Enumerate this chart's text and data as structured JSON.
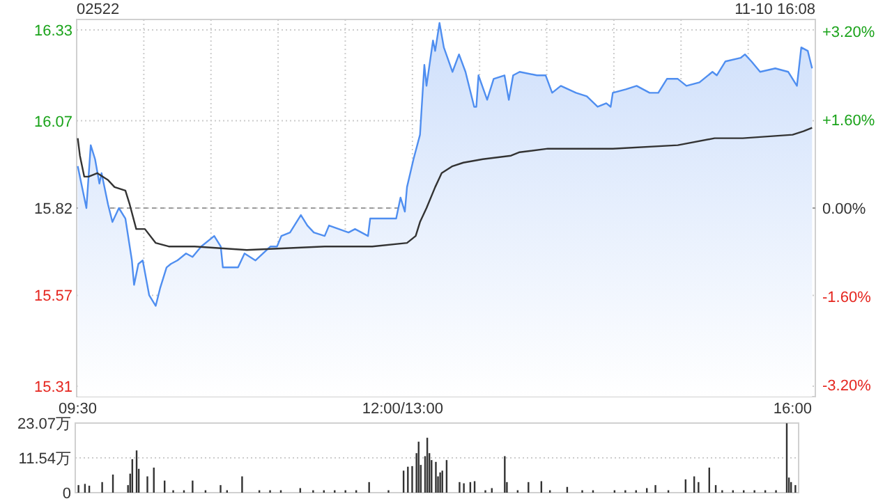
{
  "chart_data": [
    {
      "type": "line",
      "title": "02522",
      "annotations": [
        "11-10 16:08"
      ],
      "categories": [
        "09:30",
        null,
        null,
        null,
        null,
        null,
        null,
        null,
        null,
        null,
        null,
        null,
        null,
        null,
        null,
        null,
        null,
        null,
        null,
        null,
        null,
        null,
        null,
        null,
        null,
        null,
        null,
        null,
        null,
        null,
        null,
        null,
        null,
        null,
        null,
        null,
        null,
        null,
        null,
        null,
        null,
        null,
        null,
        null,
        null,
        null,
        null,
        null,
        null,
        null,
        null,
        null,
        null,
        null,
        null,
        null,
        null,
        null,
        null,
        null,
        null,
        null,
        null,
        null,
        null,
        null,
        null,
        null,
        null,
        null,
        null,
        null,
        null,
        null,
        null,
        null,
        null,
        null,
        null,
        null,
        null,
        null,
        null,
        null,
        null,
        null,
        null,
        null,
        null,
        null,
        null,
        null,
        null,
        null,
        null,
        null,
        null,
        null,
        null,
        null,
        null,
        null,
        null,
        null,
        null,
        null,
        null,
        null,
        null,
        null,
        null,
        null,
        null,
        null,
        null,
        null,
        null,
        null,
        null,
        null,
        null,
        null,
        null,
        null,
        null,
        null,
        null,
        null,
        null,
        null,
        null,
        null,
        null,
        null,
        null,
        null,
        null,
        null,
        null,
        null,
        null,
        null,
        null,
        null,
        null,
        null,
        null,
        null,
        null,
        null,
        "12:00/13:00",
        null,
        null,
        null,
        null,
        null,
        null,
        null,
        null,
        null,
        null,
        null,
        null,
        null,
        null,
        null,
        null,
        null,
        null,
        null,
        null,
        null,
        null,
        null,
        null,
        null,
        null,
        null,
        null,
        null,
        null,
        null,
        null,
        null,
        null,
        null,
        null,
        null,
        null,
        null,
        null,
        null,
        null,
        null,
        null,
        null,
        null,
        null,
        null,
        null,
        null,
        null,
        null,
        null,
        null,
        null,
        null,
        null,
        null,
        null,
        null,
        null,
        null,
        null,
        null,
        null,
        null,
        null,
        null,
        null,
        null,
        null,
        null,
        null,
        null,
        null,
        null,
        null,
        null,
        null,
        null,
        null,
        null,
        null,
        null,
        null,
        null,
        null,
        null,
        null,
        null,
        null,
        null,
        null,
        null,
        null,
        null,
        null,
        null,
        null,
        null,
        null,
        null,
        null,
        null,
        null,
        null,
        null,
        null,
        null,
        null,
        null,
        null,
        null,
        null,
        null,
        null,
        null,
        null,
        null,
        null,
        null,
        null,
        null,
        null,
        null,
        null,
        null,
        null,
        null,
        null,
        null,
        null,
        null,
        null,
        null,
        null,
        null,
        null,
        null,
        null,
        null,
        null,
        null,
        null,
        null,
        null,
        null,
        null,
        null,
        null,
        null,
        null,
        null,
        null,
        null,
        null,
        null,
        null,
        null,
        null,
        null,
        null,
        null,
        null,
        null,
        null,
        null,
        null,
        null,
        null,
        null,
        null,
        null,
        null,
        null,
        null,
        null,
        null,
        null,
        "16:00",
        null,
        null,
        null,
        null,
        null,
        null,
        null,
        null,
        null,
        null
      ],
      "series": [
        {
          "type": "area",
          "color": "#4f8ef0",
          "values": [
            15.94,
            null,
            null,
            null,
            15.82,
            null,
            16.0,
            null,
            15.96,
            null,
            15.89,
            15.92,
            null,
            null,
            15.83,
            null,
            15.78,
            null,
            null,
            15.82,
            null,
            null,
            15.79,
            null,
            null,
            15.67,
            15.6,
            null,
            15.66,
            null,
            15.67,
            null,
            null,
            15.57,
            null,
            null,
            15.54,
            null,
            15.59,
            null,
            null,
            15.65,
            null,
            15.66,
            null,
            null,
            15.67,
            null,
            null,
            null,
            15.69,
            null,
            null,
            15.68,
            null,
            null,
            null,
            15.71,
            null,
            null,
            null,
            null,
            null,
            15.74,
            null,
            null,
            15.71,
            15.65,
            null,
            null,
            null,
            null,
            null,
            null,
            15.65,
            null,
            null,
            15.69,
            null,
            null,
            null,
            null,
            15.67,
            null,
            null,
            null,
            null,
            null,
            null,
            15.71,
            null,
            null,
            15.71,
            null,
            15.74,
            null,
            null,
            null,
            15.75,
            null,
            null,
            null,
            null,
            15.8,
            null,
            null,
            15.77,
            null,
            null,
            15.75,
            null,
            null,
            null,
            null,
            15.74,
            null,
            15.77,
            null,
            null,
            null,
            null,
            null,
            null,
            null,
            null,
            15.75,
            null,
            null,
            15.76,
            null,
            null,
            null,
            null,
            null,
            15.74,
            15.79,
            null,
            null,
            null,
            null,
            null,
            null,
            15.79,
            null,
            null,
            null,
            null,
            15.79,
            null,
            15.85,
            null,
            15.81,
            15.88,
            null,
            null,
            15.96,
            null,
            null,
            16.03,
            null,
            16.23,
            16.17,
            null,
            null,
            16.3,
            16.27,
            null,
            16.35,
            null,
            16.28,
            null,
            null,
            null,
            16.21,
            null,
            null,
            16.26,
            null,
            null,
            16.21,
            null,
            null,
            null,
            16.11,
            16.11,
            16.2,
            null,
            null,
            null,
            16.13,
            null,
            null,
            16.19,
            null,
            null,
            null,
            null,
            16.2,
            null,
            16.13,
            null,
            16.2,
            null,
            null,
            16.21,
            null,
            null,
            null,
            null,
            null,
            null,
            null,
            16.2,
            null,
            null,
            null,
            16.2,
            null,
            null,
            16.15,
            null,
            null,
            null,
            16.17,
            null,
            null,
            null,
            null,
            null,
            null,
            16.15,
            null,
            null,
            null,
            null,
            16.14,
            null,
            null,
            null,
            null,
            16.11,
            null,
            null,
            null,
            16.12,
            null,
            16.11,
            16.15,
            null,
            null,
            null,
            null,
            null,
            16.16,
            null,
            null,
            null,
            null,
            16.17,
            null,
            null,
            null,
            null,
            null,
            16.15,
            null,
            null,
            null,
            16.15,
            null,
            null,
            null,
            16.19,
            null,
            null,
            null,
            null,
            16.19,
            null,
            null,
            null,
            16.17,
            null,
            null,
            null,
            null,
            null,
            16.18,
            null,
            null,
            null,
            null,
            null,
            16.21,
            null,
            16.2,
            null,
            null,
            null,
            16.24,
            null,
            null,
            null,
            null,
            null,
            null,
            16.25,
            null,
            16.26,
            null,
            null,
            16.24,
            null,
            null,
            null,
            16.21,
            null,
            null,
            null,
            null,
            null,
            null,
            16.22,
            null,
            null,
            null,
            null,
            null,
            16.21,
            null,
            null,
            null,
            16.17,
            null,
            16.28,
            null,
            null,
            16.27,
            null,
            16.22,
            null
          ]
        },
        {
          "type": "line",
          "color": "#333333",
          "values": [
            16.02,
            15.97,
            null,
            15.91,
            null,
            15.91,
            null,
            null,
            null,
            15.92,
            null,
            null,
            null,
            null,
            15.9,
            null,
            null,
            15.88,
            null,
            null,
            null,
            null,
            15.87,
            null,
            15.83,
            null,
            null,
            15.76,
            null,
            null,
            null,
            15.76,
            null,
            null,
            null,
            null,
            15.72,
            null,
            null,
            null,
            null,
            null,
            15.71,
            null,
            null,
            null,
            null,
            null,
            null,
            null,
            null,
            null,
            null,
            null,
            15.71,
            null,
            null,
            null,
            null,
            null,
            null,
            null,
            null,
            null,
            null,
            null,
            null,
            null,
            null,
            null,
            null,
            null,
            null,
            null,
            null,
            null,
            null,
            null,
            15.7,
            null,
            null,
            null,
            null,
            null,
            null,
            null,
            null,
            null,
            null,
            null,
            null,
            null,
            null,
            null,
            null,
            null,
            null,
            null,
            null,
            null,
            null,
            null,
            null,
            null,
            null,
            null,
            null,
            null,
            null,
            null,
            null,
            null,
            null,
            null,
            15.71,
            null,
            null,
            null,
            null,
            null,
            null,
            null,
            null,
            null,
            null,
            null,
            null,
            null,
            null,
            null,
            null,
            null,
            null,
            null,
            null,
            null,
            15.71,
            null,
            null,
            null,
            null,
            null,
            null,
            null,
            null,
            null,
            null,
            null,
            null,
            null,
            null,
            null,
            15.72,
            null,
            null,
            null,
            15.74,
            null,
            15.78,
            null,
            null,
            15.82,
            null,
            null,
            null,
            15.88,
            null,
            null,
            15.92,
            null,
            null,
            null,
            null,
            15.94,
            null,
            null,
            null,
            null,
            15.95,
            null,
            null,
            null,
            null,
            null,
            null,
            null,
            null,
            15.96,
            null,
            null,
            null,
            null,
            null,
            null,
            null,
            null,
            null,
            null,
            null,
            null,
            15.97,
            null,
            null,
            null,
            15.98,
            null,
            null,
            null,
            null,
            null,
            null,
            null,
            null,
            null,
            null,
            null,
            null,
            15.99,
            null,
            null,
            null,
            null,
            null,
            null,
            null,
            null,
            null,
            null,
            null,
            null,
            null,
            null,
            null,
            null,
            null,
            null,
            null,
            null,
            null,
            null,
            null,
            null,
            null,
            null,
            null,
            null,
            null,
            15.99,
            null,
            null,
            null,
            null,
            null,
            null,
            null,
            null,
            null,
            null,
            null,
            null,
            null,
            null,
            null,
            null,
            null,
            null,
            null,
            null,
            null,
            null,
            null,
            null,
            null,
            null,
            null,
            null,
            null,
            16.0,
            null,
            null,
            null,
            null,
            null,
            null,
            null,
            null,
            null,
            null,
            null,
            null,
            null,
            null,
            null,
            null,
            16.02,
            null,
            null,
            null,
            null,
            null,
            null,
            null,
            null,
            null,
            null,
            null,
            null,
            16.02,
            null,
            null,
            null,
            null,
            null,
            null,
            null,
            null,
            null,
            null,
            null,
            null,
            null,
            null,
            null,
            null,
            null,
            null,
            null,
            null,
            null,
            null,
            16.03,
            null,
            null,
            null,
            null,
            16.04,
            null,
            null,
            null,
            16.05,
            null
          ]
        }
      ],
      "ylim": [
        15.28,
        16.36
      ],
      "yticks": [
        15.31,
        15.57,
        15.82,
        16.07,
        16.33
      ],
      "y2lim": [
        -3.41,
        3.41
      ],
      "y2ticks": [
        {
          "value": -3.2,
          "label": "-3.20%"
        },
        {
          "value": -1.6,
          "label": "-1.60%"
        },
        {
          "value": 0,
          "label": "0.00%"
        },
        {
          "value": 1.6,
          "label": "+1.60%"
        },
        {
          "value": 3.2,
          "label": "+3.20%"
        }
      ],
      "ref_lines": [
        {
          "axis": "y",
          "value": 15.82,
          "color": "#999999",
          "line_style": "dashed"
        }
      ],
      "grid": true
    },
    {
      "type": "bar",
      "color": "#333333",
      "categories": [
        null,
        null,
        null,
        null,
        null,
        null,
        null,
        null,
        null,
        null,
        null,
        null,
        null,
        null,
        null,
        null,
        null,
        null,
        null,
        null,
        null,
        null,
        null,
        null,
        null,
        null,
        null,
        null,
        null,
        null,
        null,
        null,
        null,
        null,
        null,
        null,
        null,
        null,
        null,
        null,
        null,
        null,
        null,
        null,
        null,
        null,
        null,
        null,
        null,
        null,
        null,
        null,
        null,
        null,
        null,
        null,
        null,
        null,
        null,
        null,
        null,
        null,
        null,
        null,
        null,
        null,
        null,
        null,
        null,
        null,
        null,
        null,
        null,
        null,
        null,
        null,
        null,
        null,
        null,
        null,
        null,
        null,
        null,
        null,
        null,
        null,
        null,
        null,
        null,
        null,
        null,
        null,
        null,
        null,
        null,
        null,
        null,
        null,
        null,
        null,
        null,
        null,
        null,
        null,
        null,
        null,
        null,
        null,
        null,
        null,
        null,
        null,
        null,
        null,
        null,
        null,
        null,
        null,
        null,
        null,
        null,
        null,
        null,
        null,
        null,
        null,
        null,
        null,
        null,
        null,
        null,
        null,
        null,
        null,
        null,
        null,
        null,
        null,
        null,
        null,
        null,
        null,
        null,
        null,
        null,
        null,
        null,
        null,
        null,
        null,
        null,
        null,
        null,
        null,
        null,
        null,
        null,
        null,
        null,
        null,
        null,
        null,
        null,
        null,
        null,
        null,
        null,
        null,
        null,
        null,
        null,
        null,
        null,
        null,
        null,
        null,
        null,
        null,
        null,
        null,
        null,
        null,
        null,
        null,
        null,
        null,
        null,
        null,
        null,
        null,
        null,
        null,
        null,
        null,
        null,
        null,
        null,
        null,
        null,
        null,
        null,
        null,
        null,
        null,
        null,
        null,
        null,
        null,
        null,
        null,
        null,
        null,
        null,
        null,
        null,
        null,
        null,
        null,
        null,
        null,
        null,
        null,
        null,
        null,
        null,
        null,
        null,
        null,
        null,
        null,
        null,
        null,
        null,
        null,
        null,
        null,
        null,
        null,
        null,
        null,
        null,
        null,
        null,
        null,
        null,
        null,
        null,
        null,
        null,
        null,
        null,
        null,
        null,
        null,
        null,
        null,
        null,
        null,
        null,
        null,
        null,
        null,
        null,
        null,
        null,
        null,
        null,
        null,
        null,
        null,
        null,
        null,
        null,
        null,
        null,
        null,
        null,
        null,
        null,
        null,
        null,
        null,
        null,
        null,
        null,
        null,
        null,
        null,
        null,
        null,
        null,
        null,
        null,
        null,
        null,
        null,
        null,
        null,
        null,
        null,
        null,
        null,
        null,
        null,
        null,
        null,
        null,
        null,
        null,
        null,
        null,
        null,
        null,
        null,
        null,
        null,
        null,
        null,
        null,
        null,
        null,
        null,
        null,
        null,
        null,
        null,
        null,
        null,
        null,
        null,
        null,
        null,
        null,
        null,
        null,
        null
      ],
      "values": [
        null,
        2.5,
        null,
        null,
        2.9,
        null,
        2.3,
        null,
        null,
        null,
        null,
        null,
        3.5,
        null,
        null,
        null,
        null,
        6.0,
        null,
        null,
        null,
        null,
        null,
        null,
        2.5,
        6.3,
        11.1,
        null,
        14.0,
        7.9,
        null,
        null,
        null,
        5.4,
        null,
        null,
        8.3,
        null,
        null,
        null,
        null,
        4.0,
        null,
        null,
        null,
        0.8,
        null,
        null,
        null,
        null,
        0.8,
        null,
        null,
        null,
        4.0,
        null,
        null,
        null,
        null,
        null,
        0.8,
        null,
        null,
        null,
        null,
        null,
        null,
        2.5,
        null,
        null,
        0.8,
        null,
        null,
        null,
        null,
        null,
        null,
        5.4,
        null,
        null,
        null,
        null,
        null,
        null,
        null,
        0.8,
        null,
        null,
        null,
        null,
        0.8,
        null,
        null,
        null,
        null,
        0.8,
        null,
        null,
        null,
        null,
        null,
        null,
        null,
        null,
        1.5,
        null,
        null,
        null,
        null,
        null,
        0.8,
        null,
        null,
        null,
        null,
        0.8,
        null,
        null,
        null,
        null,
        0.8,
        null,
        null,
        null,
        null,
        0.8,
        null,
        null,
        null,
        null,
        0.8,
        null,
        null,
        null,
        null,
        null,
        3.5,
        null,
        null,
        null,
        null,
        null,
        null,
        null,
        null,
        0.8,
        null,
        null,
        null,
        null,
        null,
        null,
        7.3,
        null,
        8.6,
        null,
        8.8,
        null,
        13.1,
        16.9,
        9.2,
        null,
        12.1,
        18.2,
        13.1,
        10.8,
        null,
        10.2,
        5.4,
        6.7,
        7.3,
        null,
        10.8,
        null,
        null,
        null,
        null,
        null,
        3.5,
        null,
        3.1,
        null,
        null,
        3.5,
        null,
        3.8,
        null,
        null,
        null,
        null,
        0.8,
        null,
        null,
        1.5,
        null,
        null,
        null,
        null,
        null,
        12.1,
        3.5,
        null,
        null,
        null,
        null,
        0.8,
        null,
        null,
        null,
        null,
        3.5,
        null,
        null,
        null,
        null,
        null,
        3.8,
        null,
        null,
        null,
        0.8,
        null,
        null,
        null,
        null,
        null,
        null,
        null,
        1.9,
        null,
        null,
        null,
        null,
        null,
        null,
        0.8,
        null,
        null,
        null,
        null,
        0.8,
        null,
        null,
        null,
        null,
        null,
        null,
        null,
        null,
        null,
        0.8,
        null,
        null,
        null,
        null,
        0.8,
        null,
        null,
        null,
        null,
        0.8,
        null,
        null,
        null,
        null,
        1.5,
        null,
        null,
        null,
        2.5,
        null,
        null,
        null,
        null,
        null,
        0.8,
        null,
        null,
        null,
        null,
        null,
        null,
        null,
        4.4,
        null,
        null,
        null,
        5.4,
        null,
        3.5,
        null,
        null,
        null,
        null,
        8.3,
        null,
        null,
        2.5,
        null,
        null,
        0.8,
        null,
        null,
        null,
        null,
        0.8,
        null,
        null,
        null,
        null,
        0.8,
        null,
        null,
        null,
        null,
        0.8,
        null,
        null,
        null,
        null,
        0.8,
        null,
        null,
        null,
        null,
        0.8,
        null,
        null,
        null,
        null,
        23.0,
        5.0,
        3.5,
        null,
        2.5,
        null
      ],
      "ylim": [
        0,
        23.07
      ],
      "yticks": [
        0,
        {
          "value": 11.54,
          "label": "11.54万"
        },
        {
          "value": 23.07,
          "label": "23.07万"
        }
      ],
      "grid": "y",
      "tick_labels": "y"
    }
  ]
}
